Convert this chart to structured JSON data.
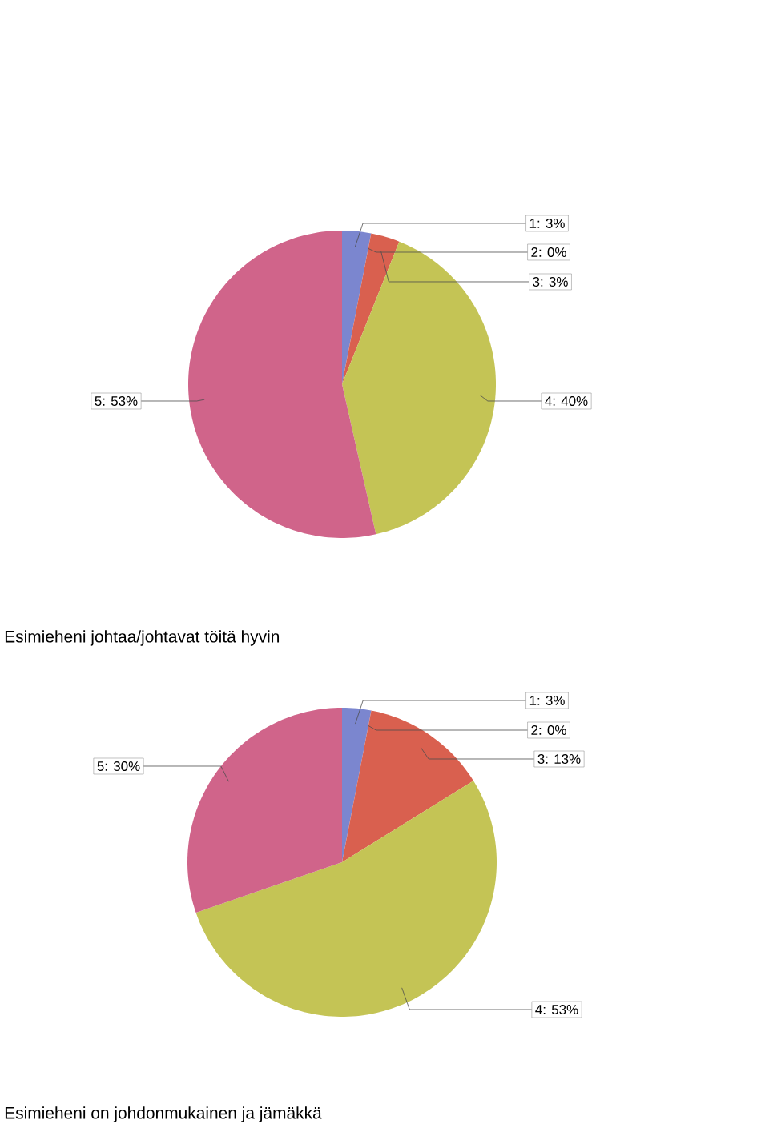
{
  "chart_data": [
    {
      "type": "pie",
      "title": "Esimieheni johtaa/johtavat töitä hyvin",
      "categories": [
        "1: 3%",
        "2: 0%",
        "3: 3%",
        "4: 40%",
        "5: 53%"
      ],
      "values": [
        3,
        0,
        3,
        40,
        53
      ],
      "colors": [
        "#7b86cf",
        null,
        "#d9604f",
        "#c4c455",
        "#d0648a"
      ]
    },
    {
      "type": "pie",
      "title": "Esimieheni on johdonmukainen ja jämäkkä",
      "categories": [
        "1: 3%",
        "2: 0%",
        "3: 13%",
        "4: 53%",
        "5: 30%"
      ],
      "values": [
        3,
        0,
        13,
        53,
        30
      ],
      "colors": [
        "#7b86cf",
        null,
        "#d9604f",
        "#c4c455",
        "#d0648a"
      ]
    }
  ]
}
